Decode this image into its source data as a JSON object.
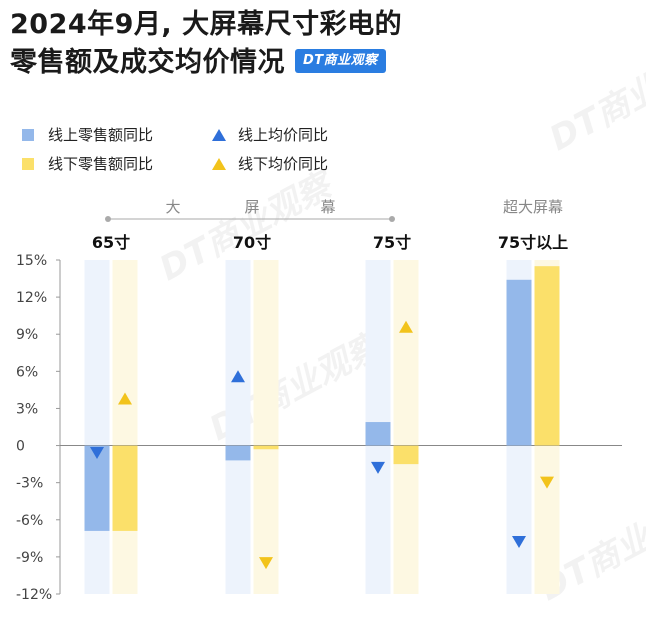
{
  "title": {
    "line1": "2024年9月, 大屏幕尺寸彩电的",
    "line2": "零售额及成交均价情况",
    "brand": "DT商业观察"
  },
  "watermark": "DT商业观察",
  "colors": {
    "online_bar": "#94b8ea",
    "offline_bar": "#fbe06a",
    "online_marker": "#2f6fd9",
    "offline_marker": "#f2c31b",
    "online_band": "#edf3fc",
    "offline_band": "#fdf8e2"
  },
  "legend": [
    {
      "label": "线上零售额同比",
      "shape": "square",
      "color": "#94b8ea"
    },
    {
      "label": "线上均价同比",
      "shape": "triangle-up",
      "color": "#2f6fd9"
    },
    {
      "label": "线下零售额同比",
      "shape": "square",
      "color": "#fbe06a"
    },
    {
      "label": "线下均价同比",
      "shape": "triangle-up",
      "color": "#f2c31b"
    }
  ],
  "group_captions": {
    "big_screen": [
      "大",
      "屏",
      "幕"
    ],
    "super_big_screen": "超大屏幕"
  },
  "chart_data": {
    "type": "bar",
    "categories": [
      "65寸",
      "70寸",
      "75寸",
      "75寸以上"
    ],
    "series": [
      {
        "name": "线上零售额同比",
        "kind": "bar",
        "values": [
          -6.9,
          -1.2,
          1.9,
          13.4
        ]
      },
      {
        "name": "线下零售额同比",
        "kind": "bar",
        "values": [
          -6.9,
          -0.3,
          -1.5,
          14.5
        ]
      },
      {
        "name": "线上均价同比",
        "kind": "marker",
        "values": [
          -0.6,
          5.6,
          -1.8,
          -7.8
        ]
      },
      {
        "name": "线下均价同比",
        "kind": "marker",
        "values": [
          3.8,
          -9.5,
          9.6,
          -3.0
        ]
      }
    ],
    "y_ticks": [
      "15%",
      "12%",
      "9%",
      "6%",
      "3%",
      "0",
      "-3%",
      "-6%",
      "-9%",
      "-12%"
    ],
    "ylim": [
      -12,
      15
    ],
    "grid": false,
    "legend_position": "top-left"
  }
}
